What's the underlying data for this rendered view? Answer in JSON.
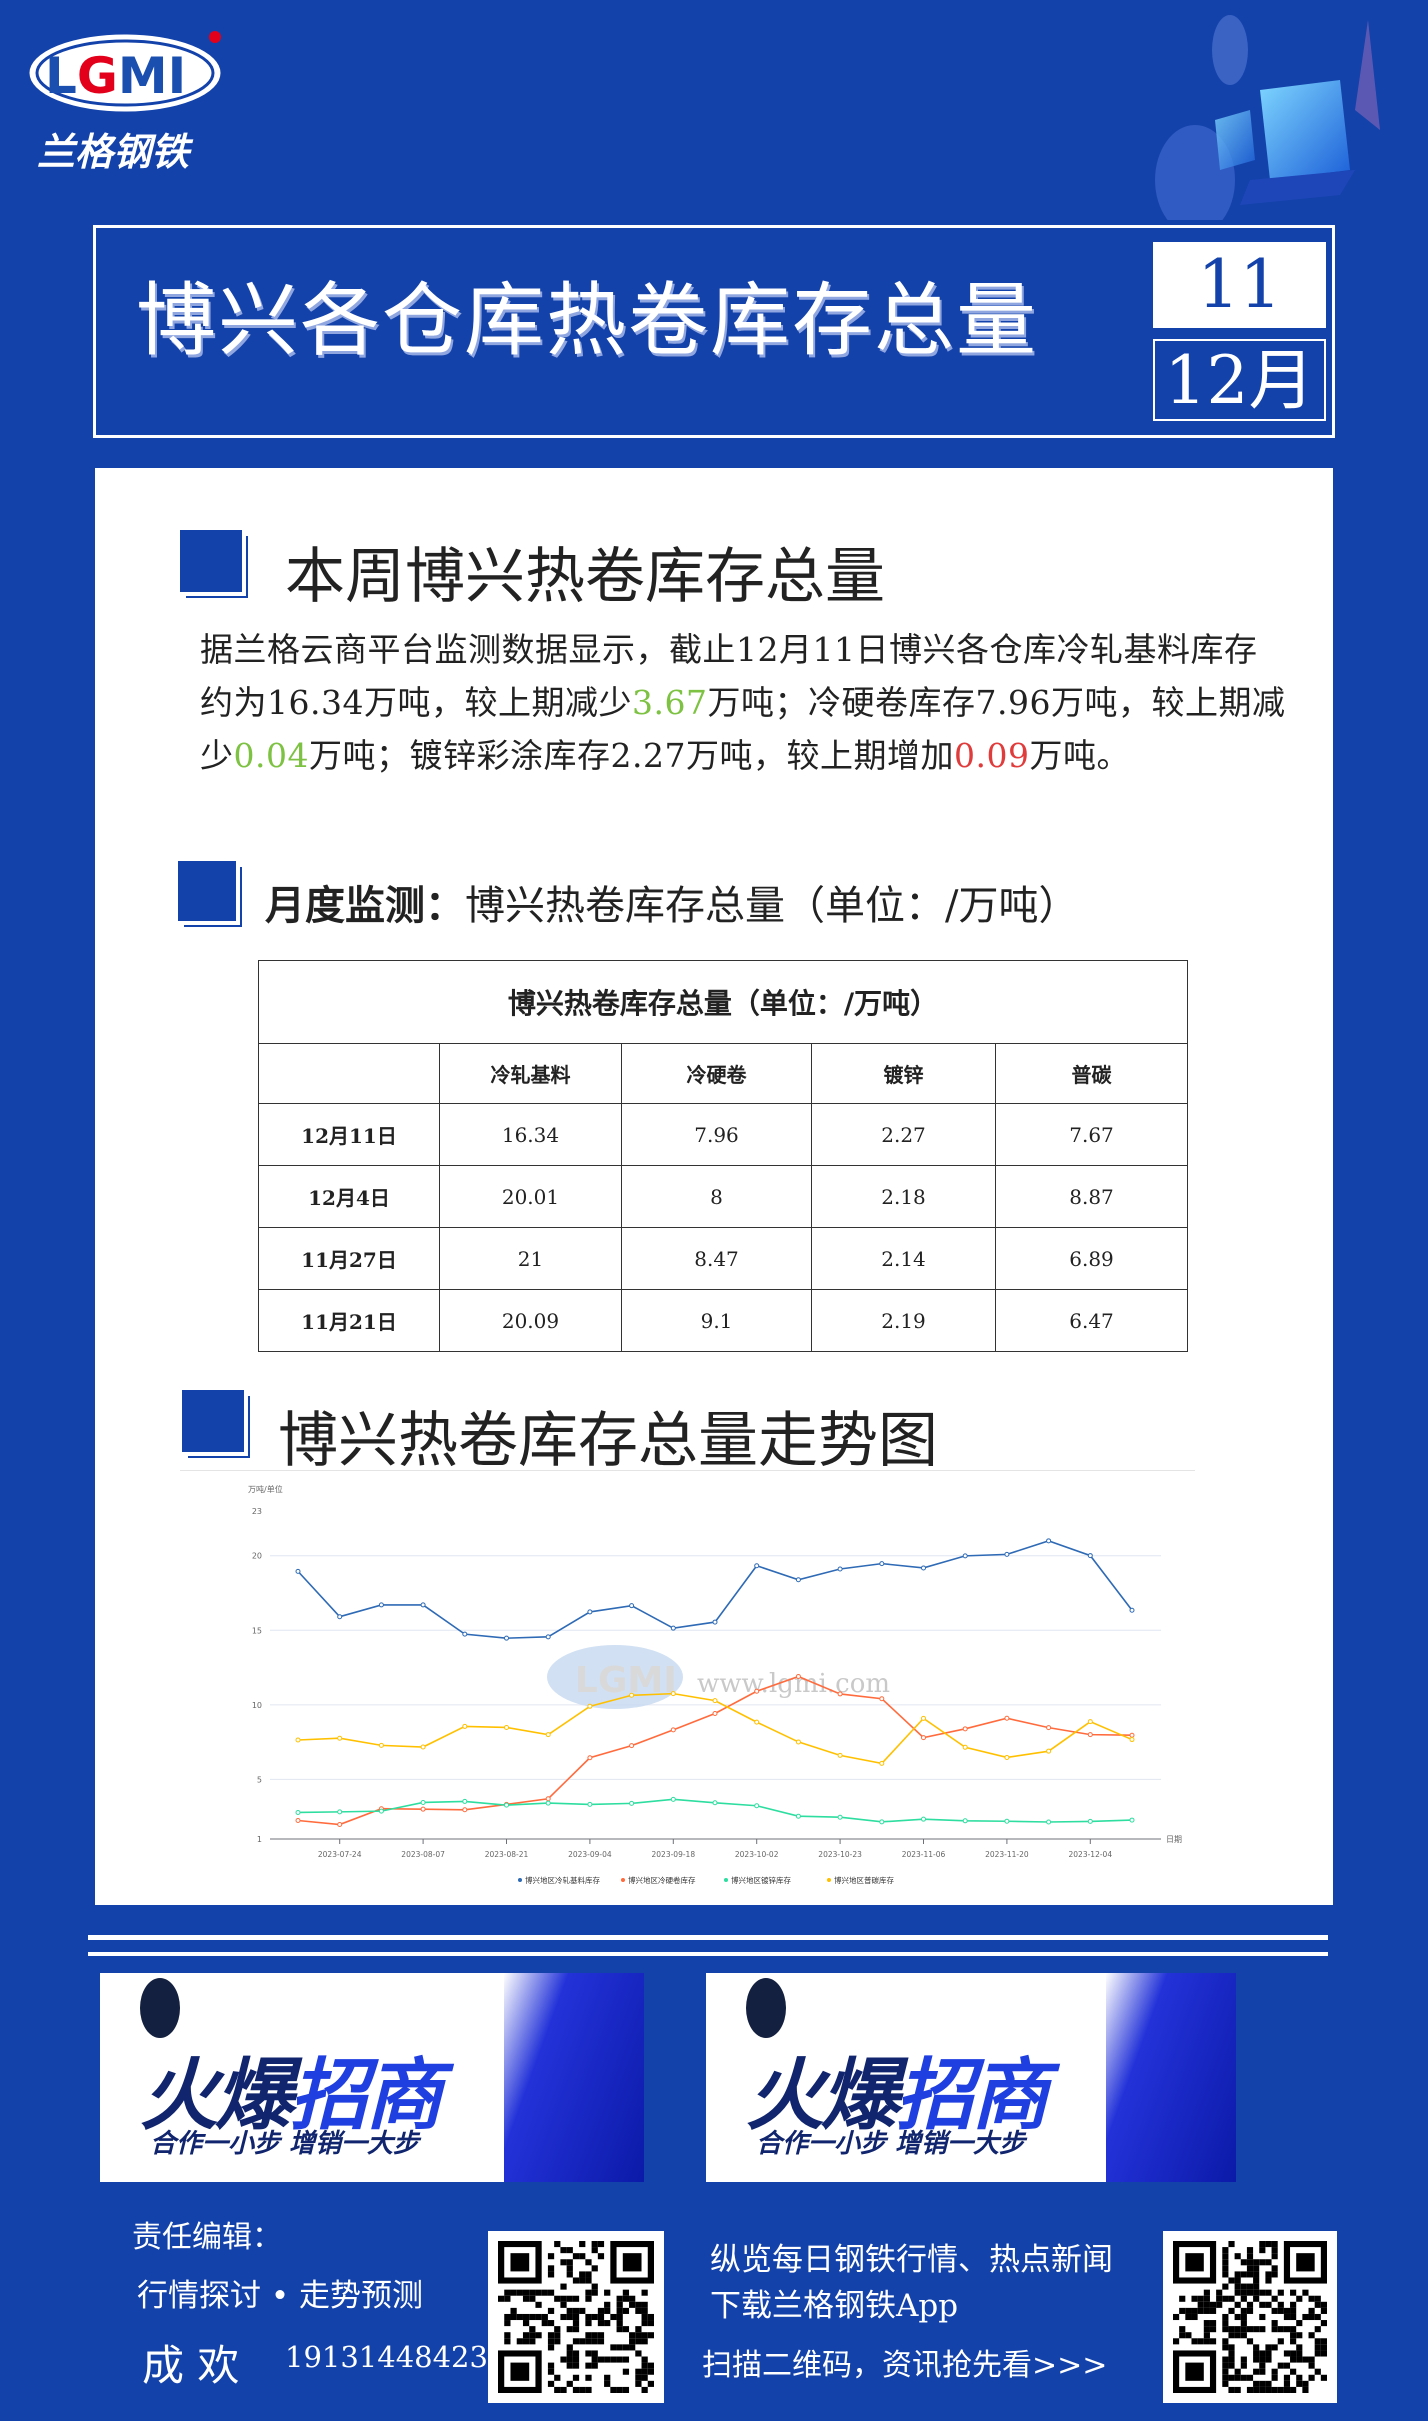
{
  "brand": {
    "logo_text": "LGMI",
    "logo_cn": "兰格钢铁"
  },
  "header": {
    "title": "博兴各仓库热卷库存总量",
    "day": "11",
    "month": "12月"
  },
  "section1": {
    "heading": "本周博兴热卷库存总量",
    "para": [
      "据兰格云商平台监测数据显示，截止12月11日博兴各仓库冷轧基料库存约为16.34万吨，较上期减少",
      "3.67",
      "万吨；冷硬卷库存7.96万吨，较上期减少",
      "0.04",
      "万吨；镀锌彩涂库存2.27万吨，较上期增加",
      "0.09",
      "万吨。"
    ]
  },
  "section2": {
    "heading_bold": "月度监测：",
    "heading": "博兴热卷库存总量（单位：/万吨）"
  },
  "table": {
    "title": "博兴热卷库存总量（单位：/万吨）",
    "columns": [
      "",
      "冷轧基料",
      "冷硬卷",
      "镀锌",
      "普碳"
    ],
    "rows": [
      [
        "12月11日",
        "16.34",
        "7.96",
        "2.27",
        "7.67"
      ],
      [
        "12月4日",
        "20.01",
        "8",
        "2.18",
        "8.87"
      ],
      [
        "11月27日",
        "21",
        "8.47",
        "2.14",
        "6.89"
      ],
      [
        "11月21日",
        "20.09",
        "9.1",
        "2.19",
        "6.47"
      ]
    ]
  },
  "section3": {
    "heading": "博兴热卷库存总量走势图"
  },
  "chart_data": {
    "type": "line",
    "ylabel": "万吨/单位",
    "xlabel": "日期",
    "ylim": [
      1,
      23
    ],
    "yticks": [
      1,
      5,
      10,
      15,
      20,
      23
    ],
    "grid": true,
    "legend": "bottom",
    "watermark": "www.lgmi.com",
    "categories": [
      "",
      "2023-07-24",
      "",
      "2023-08-07",
      "",
      "2023-08-21",
      "",
      "2023-09-04",
      "",
      "2023-09-18",
      "",
      "2023-10-02",
      "",
      "2023-10-23",
      "",
      "2023-11-06",
      "",
      "2023-11-20",
      "",
      "2023-12-04",
      ""
    ],
    "series": [
      {
        "name": "博兴地区冷轧基料库存",
        "color": "#2e6ab5",
        "values": [
          18.95,
          15.91,
          16.7,
          16.7,
          14.74,
          14.47,
          14.56,
          16.23,
          16.65,
          15.14,
          15.55,
          19.33,
          18.39,
          19.11,
          19.47,
          19.18,
          19.99,
          20.09,
          21,
          20.01,
          16.34
        ]
      },
      {
        "name": "博兴地区冷硬卷库存",
        "color": "#ff6b3d",
        "values": [
          2.24,
          1.97,
          3.03,
          3.0,
          2.96,
          3.32,
          3.7,
          6.45,
          7.26,
          8.32,
          9.42,
          10.91,
          11.9,
          10.73,
          10.41,
          7.8,
          8.39,
          9.1,
          8.47,
          8.0,
          7.96
        ]
      },
      {
        "name": "博兴地区镀锌库存",
        "color": "#2edda0",
        "values": [
          2.78,
          2.82,
          2.87,
          3.45,
          3.52,
          3.27,
          3.41,
          3.32,
          3.39,
          3.66,
          3.43,
          3.23,
          2.53,
          2.46,
          2.15,
          2.33,
          2.22,
          2.19,
          2.14,
          2.18,
          2.27
        ]
      },
      {
        "name": "博兴地区普碳库存",
        "color": "#ffc000",
        "values": [
          7.64,
          7.76,
          7.28,
          7.17,
          8.55,
          8.48,
          8.0,
          9.9,
          10.64,
          10.75,
          10.28,
          8.84,
          7.51,
          6.61,
          6.07,
          9.09,
          7.15,
          6.47,
          6.89,
          8.87,
          7.67
        ]
      }
    ]
  },
  "banners": [
    {
      "title_a": "火爆",
      "title_b": "招商",
      "slogan": "合作一小步  增销一大步"
    },
    {
      "title_a": "火爆",
      "title_b": "招商",
      "slogan": "合作一小步  增销一大步"
    }
  ],
  "footer": {
    "editor_label": "责任编辑：",
    "topics": "行情探讨 • 走势预测",
    "editor_name": "成 欢",
    "phone": "19131448423",
    "promo": [
      "纵览每日钢铁行情、热点新闻",
      "下载兰格钢铁App",
      "扫描二维码，资讯抢先看>>>"
    ]
  },
  "colors": {
    "background": "#1342ab",
    "decrease": "#7dc242",
    "increase": "#e03c3c"
  }
}
